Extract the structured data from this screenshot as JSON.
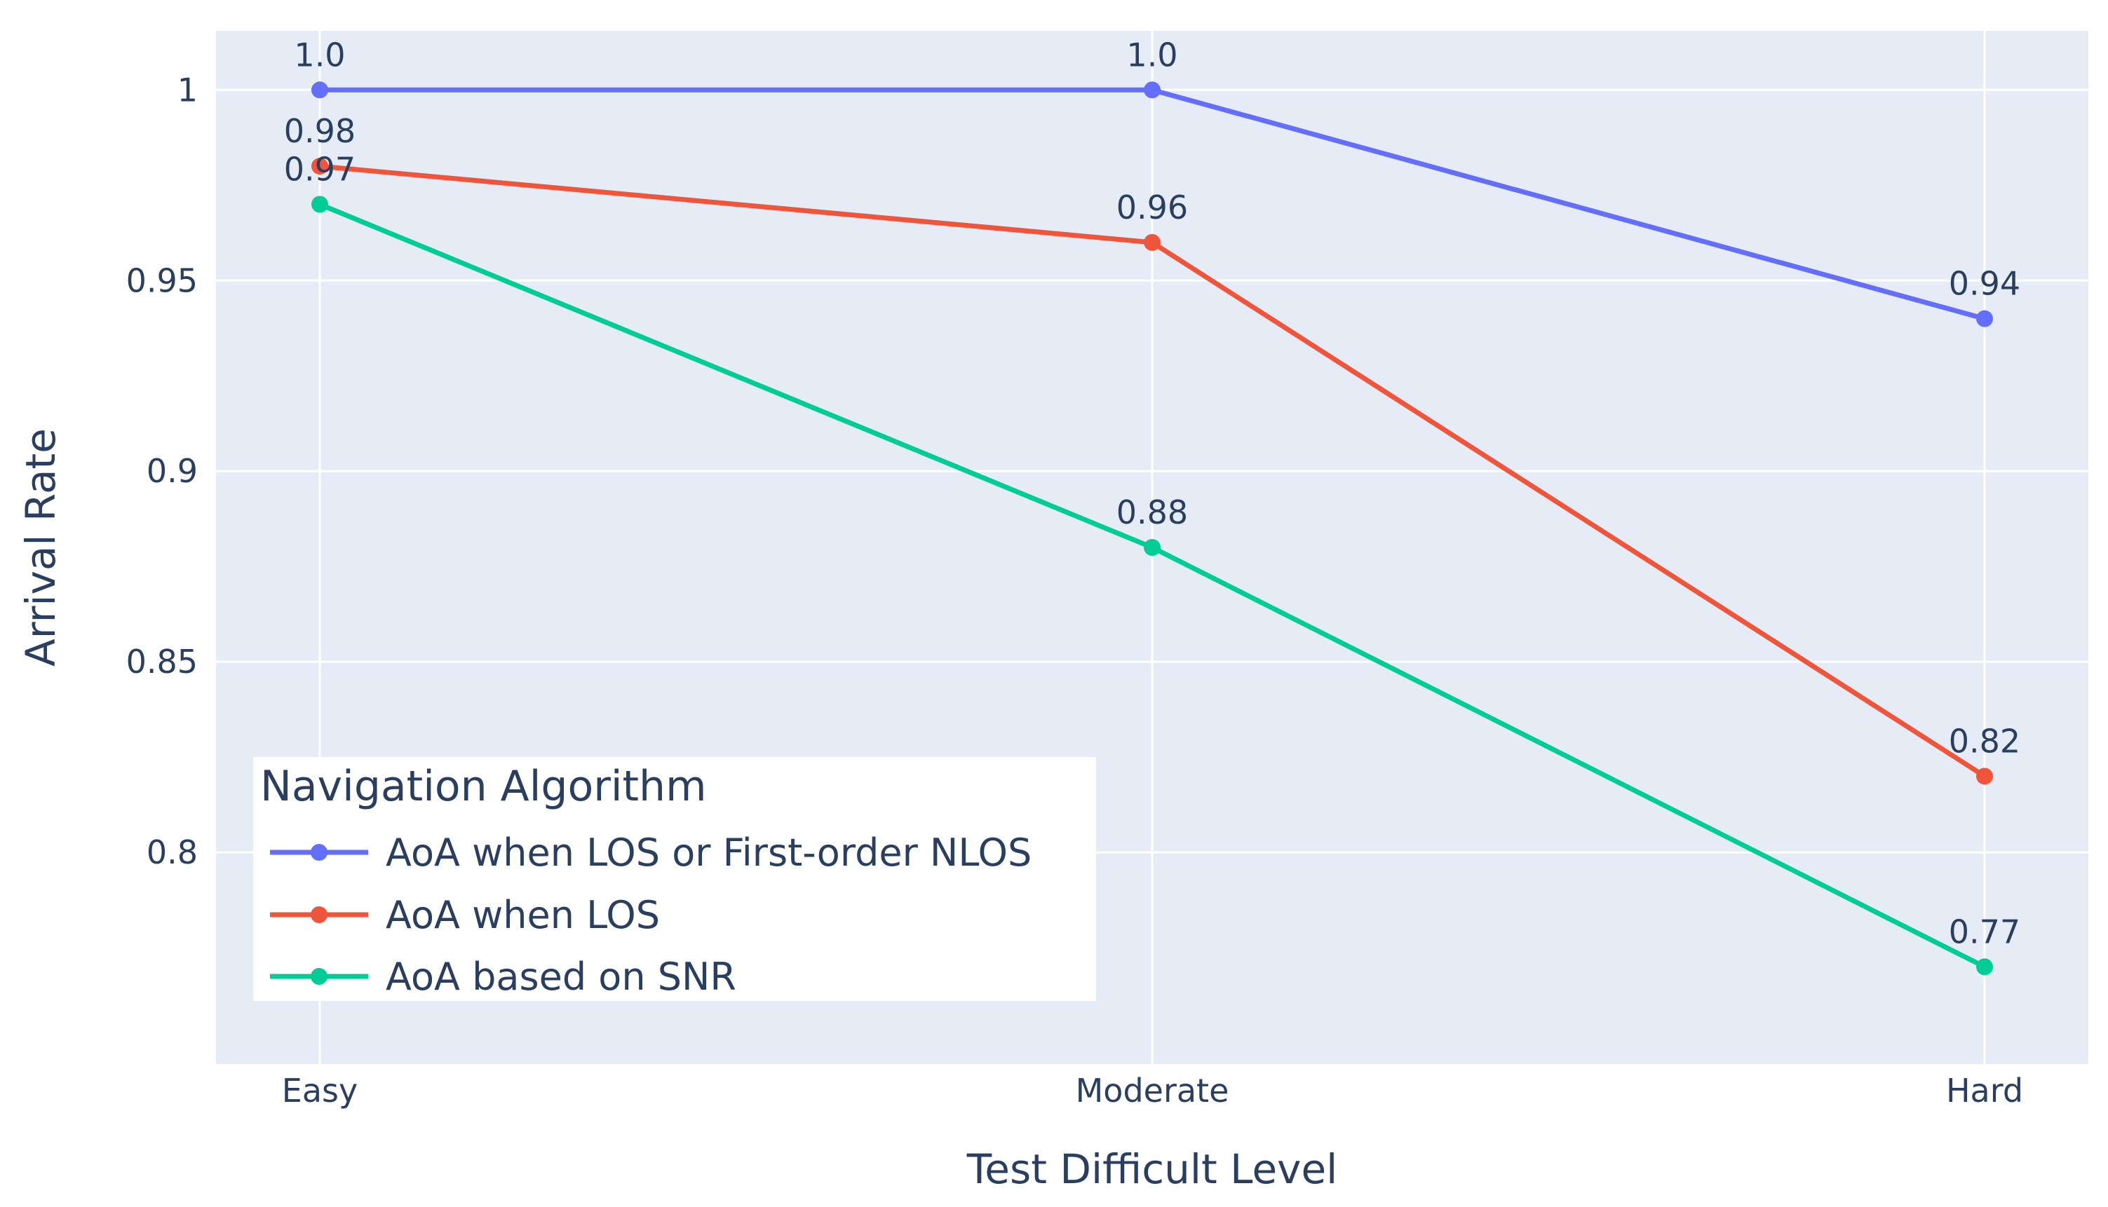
{
  "chart_data": {
    "type": "line",
    "categories": [
      "Easy",
      "Moderate",
      "Hard"
    ],
    "xlabel": "Test Difficult Level",
    "ylabel": "Arrival Rate",
    "ylim": [
      0.7445,
      1.0155
    ],
    "yticks": [
      0.8,
      0.85,
      0.9,
      0.95,
      1
    ],
    "ytick_labels": [
      "0.8",
      "0.85",
      "0.9",
      "0.95",
      "1"
    ],
    "grid": true,
    "legend": {
      "title": "Navigation Algorithm",
      "placement": "bottom-left"
    },
    "series": [
      {
        "name": "AoA when LOS or First-order NLOS",
        "color": "#636efa",
        "values": [
          1.0,
          1.0,
          0.94
        ],
        "labels": [
          "1.0",
          "1.0",
          "0.94"
        ]
      },
      {
        "name": "AoA when LOS",
        "color": "#ef553b",
        "values": [
          0.98,
          0.96,
          0.82
        ],
        "labels": [
          "0.98",
          "0.96",
          "0.82"
        ]
      },
      {
        "name": "AoA based on SNR",
        "color": "#00cc96",
        "values": [
          0.97,
          0.88,
          0.77
        ],
        "labels": [
          "0.97",
          "0.88",
          "0.77"
        ]
      }
    ]
  }
}
